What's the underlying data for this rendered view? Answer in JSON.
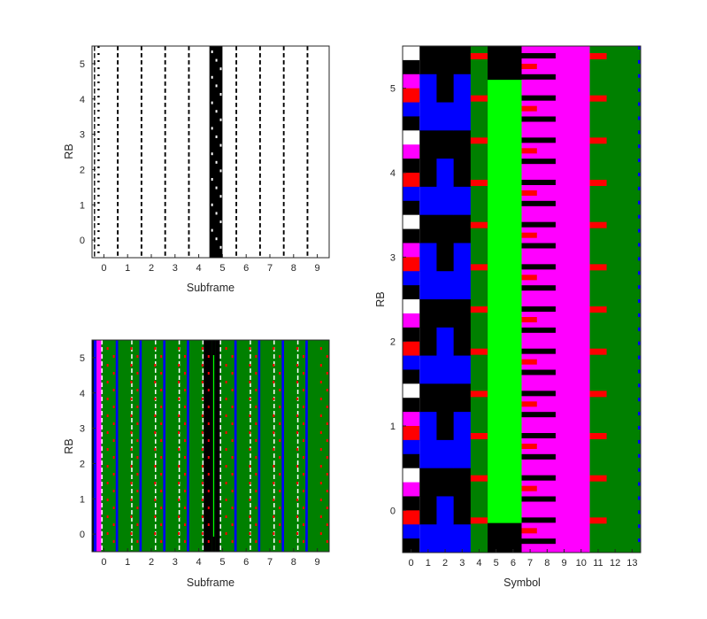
{
  "colors": {
    "black": "#000000",
    "white": "#ffffff",
    "blue": "#0000ff",
    "green": "#008000",
    "lime": "#00ff00",
    "magenta": "#ff00ff",
    "red": "#ff0000",
    "frame": "#262626"
  },
  "chart_data": [
    {
      "type": "heatmap",
      "panel": "top-left",
      "title": "",
      "xlabel": "Subframe",
      "ylabel": "RB",
      "xlim": [
        -0.5,
        9.5
      ],
      "ylim": [
        -0.5,
        5.5
      ],
      "xticks": [
        "0",
        "1",
        "2",
        "3",
        "4",
        "5",
        "6",
        "7",
        "8",
        "9"
      ],
      "yticks": [
        "0",
        "1",
        "2",
        "3",
        "4",
        "5"
      ],
      "palette": [
        "white",
        "black"
      ],
      "description_of_content": "binary resource grid per subframe",
      "cells": [
        {
          "x": -0.42,
          "w": 0.05,
          "y0": -0.5,
          "y1": 5.5,
          "c": "black",
          "dash": 0.7
        },
        {
          "x": -0.27,
          "w": 0.09,
          "y0": -0.5,
          "y1": 5.5,
          "c": "black",
          "dash": 0.25
        },
        {
          "x": 0.55,
          "w": 0.07,
          "y0": -0.5,
          "y1": 5.5,
          "c": "black",
          "dash": 0.6
        },
        {
          "x": 1.55,
          "w": 0.07,
          "y0": -0.5,
          "y1": 5.5,
          "c": "black",
          "dash": 0.6
        },
        {
          "x": 2.55,
          "w": 0.07,
          "y0": -0.5,
          "y1": 5.5,
          "c": "black",
          "dash": 0.6
        },
        {
          "x": 3.55,
          "w": 0.07,
          "y0": -0.5,
          "y1": 5.5,
          "c": "black",
          "dash": 0.6
        },
        {
          "x": 4.45,
          "w": 0.55,
          "y0": -0.5,
          "y1": 5.5,
          "c": "black",
          "dash": 0
        },
        {
          "x": 5.55,
          "w": 0.07,
          "y0": -0.5,
          "y1": 5.5,
          "c": "black",
          "dash": 0.6
        },
        {
          "x": 6.55,
          "w": 0.07,
          "y0": -0.5,
          "y1": 5.5,
          "c": "black",
          "dash": 0.6
        },
        {
          "x": 7.55,
          "w": 0.07,
          "y0": -0.5,
          "y1": 5.5,
          "c": "black",
          "dash": 0.6
        },
        {
          "x": 8.55,
          "w": 0.07,
          "y0": -0.5,
          "y1": 5.5,
          "c": "black",
          "dash": 0.6
        }
      ]
    },
    {
      "type": "heatmap",
      "panel": "bottom-left",
      "title": "",
      "xlabel": "Subframe",
      "ylabel": "RB",
      "xlim": [
        -0.5,
        9.5
      ],
      "ylim": [
        -0.5,
        5.5
      ],
      "xticks": [
        "0",
        "1",
        "2",
        "3",
        "4",
        "5",
        "6",
        "7",
        "8",
        "9"
      ],
      "yticks": [
        "0",
        "1",
        "2",
        "3",
        "4",
        "5"
      ],
      "palette": [
        "black",
        "blue",
        "green",
        "lime",
        "magenta",
        "red",
        "white"
      ],
      "subframes": [
        {
          "index": 0,
          "stripes": [
            "black",
            "blue",
            "magenta",
            "white",
            "green"
          ]
        },
        {
          "index": 1,
          "stripes": [
            "blue",
            "green",
            "white",
            "green"
          ]
        },
        {
          "index": 2,
          "stripes": [
            "blue",
            "green",
            "white",
            "green"
          ]
        },
        {
          "index": 3,
          "stripes": [
            "blue",
            "green",
            "white",
            "green"
          ]
        },
        {
          "index": 4,
          "stripes": [
            "blue",
            "green",
            "white",
            "black"
          ]
        },
        {
          "index": 5,
          "stripes": [
            "black",
            "lime",
            "black",
            "white",
            "green"
          ]
        },
        {
          "index": 6,
          "stripes": [
            "blue",
            "green",
            "white",
            "green"
          ]
        },
        {
          "index": 7,
          "stripes": [
            "blue",
            "green",
            "white",
            "green"
          ]
        },
        {
          "index": 8,
          "stripes": [
            "blue",
            "green",
            "white",
            "green"
          ]
        },
        {
          "index": 9,
          "stripes": [
            "blue",
            "green"
          ]
        }
      ]
    },
    {
      "type": "heatmap",
      "panel": "right",
      "title": "",
      "xlabel": "Symbol",
      "ylabel": "RB",
      "xlim": [
        -0.5,
        13.5
      ],
      "ylim": [
        -0.5,
        5.5
      ],
      "xticks": [
        "0",
        "1",
        "2",
        "3",
        "4",
        "5",
        "6",
        "7",
        "8",
        "9",
        "10",
        "11",
        "12",
        "13"
      ],
      "yticks": [
        "0",
        "1",
        "2",
        "3",
        "4",
        "5"
      ],
      "palette": [
        "black",
        "blue",
        "green",
        "lime",
        "magenta",
        "red",
        "white"
      ],
      "columns": [
        {
          "symbol": 0,
          "content": "PCFICH/PHICH/PDCCH region: white, magenta, blue, black, red cells"
        },
        {
          "symbol": 1,
          "content": "black/blue blocks"
        },
        {
          "symbol": 2,
          "content": "blue/black blocks"
        },
        {
          "symbol": 3,
          "content": "black/blue blocks"
        },
        {
          "symbol": 4,
          "content": "green with red reference signals"
        },
        {
          "symbol": 5,
          "content": "lime PSS/SSS band, black at edges"
        },
        {
          "symbol": 6,
          "content": "lime PSS/SSS band, black at edges"
        },
        {
          "symbol": 7,
          "content": "magenta with red and black"
        },
        {
          "symbol": 8,
          "content": "magenta with black bars"
        },
        {
          "symbol": 9,
          "content": "magenta"
        },
        {
          "symbol": 10,
          "content": "magenta"
        },
        {
          "symbol": 11,
          "content": "green with red reference signals"
        },
        {
          "symbol": 12,
          "content": "green"
        },
        {
          "symbol": 13,
          "content": "green with blue edge"
        }
      ]
    }
  ]
}
